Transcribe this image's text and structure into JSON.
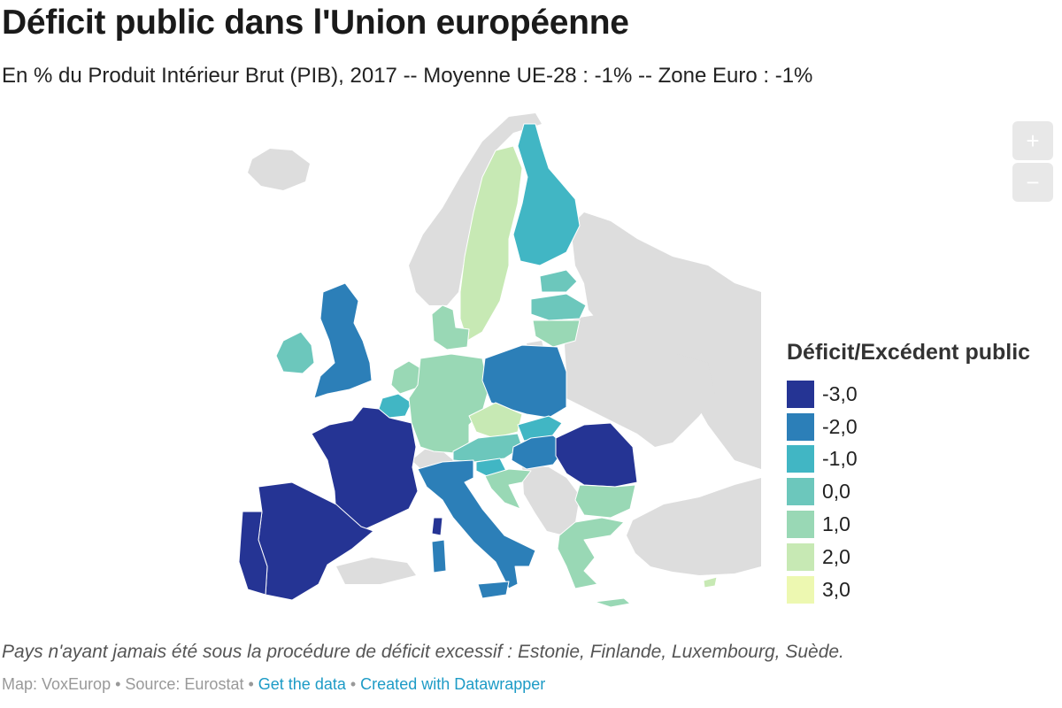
{
  "title": "Déficit public dans l'Union européenne",
  "subtitle": "En % du Produit Intérieur Brut (PIB), 2017 -- Moyenne UE-28 : -1% -- Zone Euro : -1%",
  "zoom": {
    "in_label": "+",
    "out_label": "−"
  },
  "legend": {
    "title": "Déficit/Excédent public",
    "items": [
      {
        "label": "-3,0",
        "color": "#253494"
      },
      {
        "label": "-2,0",
        "color": "#2c7fb8"
      },
      {
        "label": "-1,0",
        "color": "#41b6c4"
      },
      {
        "label": "0,0",
        "color": "#6cc7bc"
      },
      {
        "label": "1,0",
        "color": "#99d8b5"
      },
      {
        "label": "2,0",
        "color": "#c7e9b4"
      },
      {
        "label": "3,0",
        "color": "#edf8b1"
      }
    ]
  },
  "note": "Pays n'ayant jamais été sous la procédure de déficit excessif : Estonie, Finlande, Luxembourg, Suède.",
  "footer": {
    "map_credit": "Map: VoxEurop",
    "sep1": " • ",
    "source": "Source: Eurostat",
    "sep2": " • ",
    "data_link": "Get the data",
    "sep3": " • ",
    "credit_link": "Created with Datawrapper"
  },
  "map": {
    "no_data_color": "#dddddd",
    "countries": [
      {
        "name": "Espagne",
        "color": "#253494"
      },
      {
        "name": "Portugal",
        "color": "#253494"
      },
      {
        "name": "France",
        "color": "#253494"
      },
      {
        "name": "Roumanie",
        "color": "#253494"
      },
      {
        "name": "Italie",
        "color": "#2c7fb8"
      },
      {
        "name": "Royaume-Uni",
        "color": "#2c7fb8"
      },
      {
        "name": "Pologne",
        "color": "#2c7fb8"
      },
      {
        "name": "Hongrie",
        "color": "#2c7fb8"
      },
      {
        "name": "Belgique",
        "color": "#41b6c4"
      },
      {
        "name": "Finlande",
        "color": "#41b6c4"
      },
      {
        "name": "Slovaquie",
        "color": "#41b6c4"
      },
      {
        "name": "Slovénie",
        "color": "#41b6c4"
      },
      {
        "name": "Irlande",
        "color": "#6cc7bc"
      },
      {
        "name": "Estonie",
        "color": "#6cc7bc"
      },
      {
        "name": "Lettonie",
        "color": "#6cc7bc"
      },
      {
        "name": "Autriche",
        "color": "#6cc7bc"
      },
      {
        "name": "Allemagne",
        "color": "#99d8b5"
      },
      {
        "name": "Pays-Bas",
        "color": "#99d8b5"
      },
      {
        "name": "Danemark",
        "color": "#99d8b5"
      },
      {
        "name": "Lituanie",
        "color": "#99d8b5"
      },
      {
        "name": "Bulgarie",
        "color": "#99d8b5"
      },
      {
        "name": "Grèce",
        "color": "#99d8b5"
      },
      {
        "name": "Croatie",
        "color": "#99d8b5"
      },
      {
        "name": "Suède",
        "color": "#c7e9b4"
      },
      {
        "name": "Tchéquie",
        "color": "#c7e9b4"
      },
      {
        "name": "Chypre",
        "color": "#c7e9b4"
      }
    ]
  }
}
